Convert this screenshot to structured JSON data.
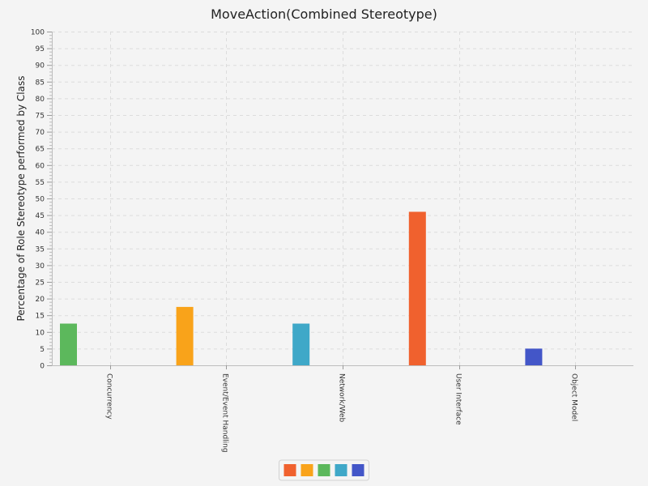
{
  "chart_data": {
    "type": "bar",
    "title": "MoveAction(Combined Stereotype)",
    "xlabel": "",
    "ylabel": "Percentage of Role Stereotype performed by Class",
    "ylim": [
      0,
      100
    ],
    "y_major_ticks": [
      0,
      5,
      10,
      15,
      20,
      25,
      30,
      35,
      40,
      45,
      50,
      55,
      60,
      65,
      70,
      75,
      80,
      85,
      90,
      95,
      100
    ],
    "y_tick_labels": [
      "0",
      "5",
      "10",
      "15",
      "20",
      "25",
      "30",
      "35",
      "40",
      "45",
      "50",
      "55",
      "60",
      "65",
      "70",
      "75",
      "80",
      "85",
      "90",
      "95",
      "100"
    ],
    "categories": [
      "Concurrency",
      "Event/Event Handling",
      "Network/Web",
      "User Interface",
      "Object Model"
    ],
    "values": [
      12.5,
      17.5,
      12.5,
      46,
      5
    ],
    "colors": [
      "#5cb85c",
      "#f9a31a",
      "#3fa8c8",
      "#f0612e",
      "#4356c8"
    ],
    "grid": true,
    "legend": {
      "placement": "bottom-center",
      "swatches": [
        "#f0612e",
        "#f9a31a",
        "#5cb85c",
        "#3fa8c8",
        "#4356c8"
      ]
    }
  }
}
